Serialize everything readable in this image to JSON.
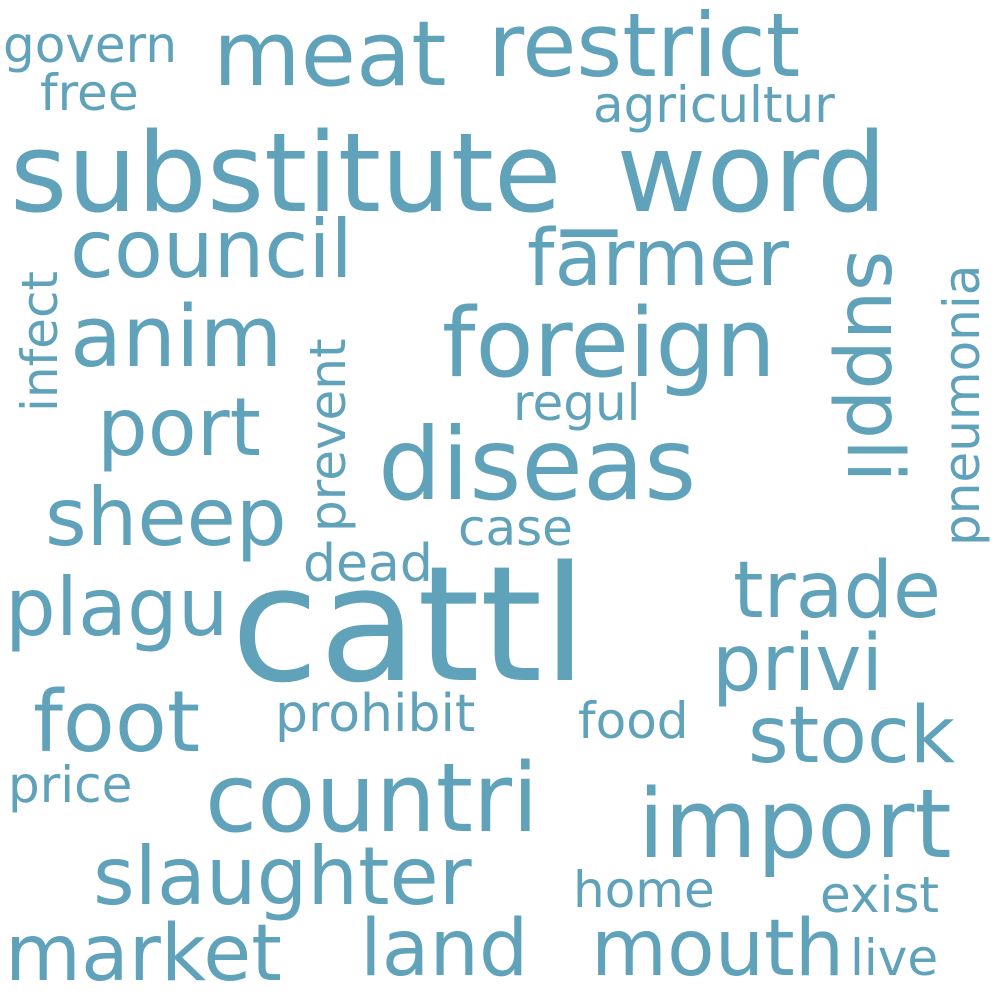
{
  "color": "#5fa2ba",
  "words": [
    {
      "text": "cattl"
    },
    {
      "text": "substitute_word"
    },
    {
      "text": "diseas"
    },
    {
      "text": "foreign"
    },
    {
      "text": "countri"
    },
    {
      "text": "import"
    },
    {
      "text": "meat"
    },
    {
      "text": "restrict"
    },
    {
      "text": "anim"
    },
    {
      "text": "council"
    },
    {
      "text": "farmer"
    },
    {
      "text": "suppli"
    },
    {
      "text": "port"
    },
    {
      "text": "sheep"
    },
    {
      "text": "plagu"
    },
    {
      "text": "trade"
    },
    {
      "text": "privi"
    },
    {
      "text": "foot"
    },
    {
      "text": "stock"
    },
    {
      "text": "slaughter"
    },
    {
      "text": "market"
    },
    {
      "text": "land"
    },
    {
      "text": "mouth"
    },
    {
      "text": "agricultur"
    },
    {
      "text": "govern"
    },
    {
      "text": "free"
    },
    {
      "text": "infect"
    },
    {
      "text": "prevent"
    },
    {
      "text": "pneumonia"
    },
    {
      "text": "regul"
    },
    {
      "text": "case"
    },
    {
      "text": "dead"
    },
    {
      "text": "prohibit"
    },
    {
      "text": "food"
    },
    {
      "text": "price"
    },
    {
      "text": "home"
    },
    {
      "text": "exist"
    },
    {
      "text": "live"
    }
  ]
}
